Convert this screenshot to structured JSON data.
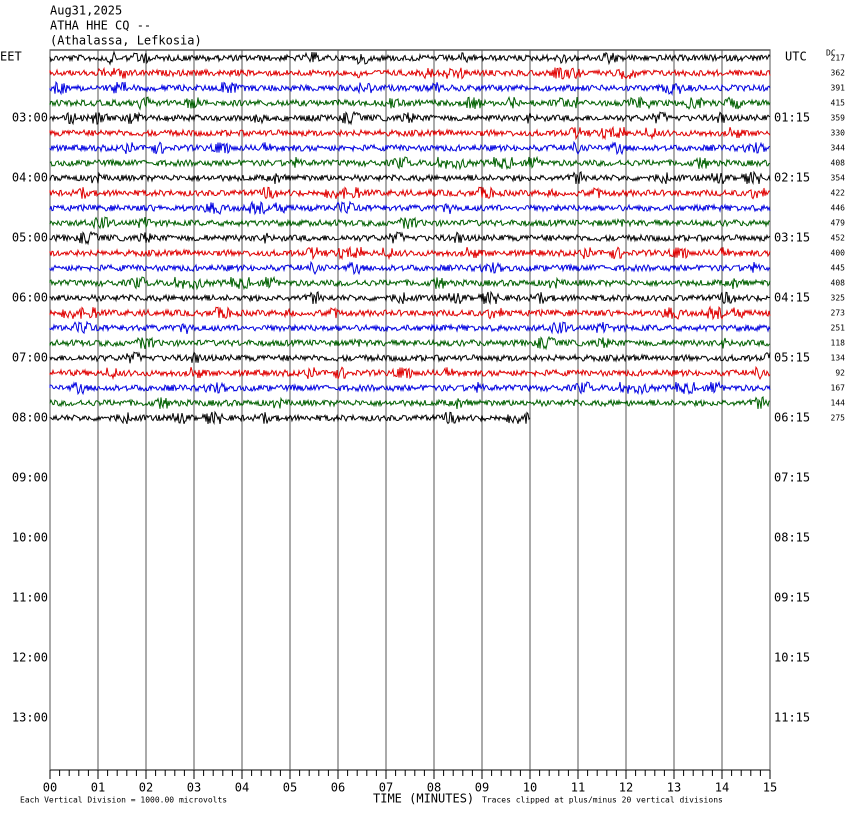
{
  "header": {
    "date": "Aug31,2025",
    "station": "ATHA HHE CQ --",
    "location": "(Athalassa, Lefkosia)"
  },
  "left_axis": {
    "title": "EET",
    "labels": [
      "03:00",
      "04:00",
      "05:00",
      "06:00",
      "07:00",
      "08:00",
      "09:00",
      "10:00",
      "11:00",
      "12:00",
      "13:00"
    ]
  },
  "right_axis": {
    "title": "UTC",
    "labels": [
      "01:15",
      "02:15",
      "03:15",
      "04:15",
      "05:15",
      "06:15",
      "07:15",
      "08:15",
      "09:15",
      "10:15",
      "11:15"
    ]
  },
  "dc_offsets": {
    "title": "DC",
    "values": [
      217,
      362,
      391,
      415,
      359,
      330,
      344,
      408,
      354,
      422,
      446,
      479,
      452,
      400,
      445,
      408,
      325,
      273,
      251,
      118,
      134,
      92,
      167,
      144,
      275
    ]
  },
  "x_axis": {
    "title": "TIME (MINUTES)",
    "ticks": [
      "00",
      "01",
      "02",
      "03",
      "04",
      "05",
      "06",
      "07",
      "08",
      "09",
      "10",
      "11",
      "12",
      "13",
      "14",
      "15"
    ]
  },
  "footer": {
    "scale": "Each Vertical Division = 1000.00 microvolts",
    "clip": "Traces clipped at plus/minus 20 vertical divisions"
  }
}
